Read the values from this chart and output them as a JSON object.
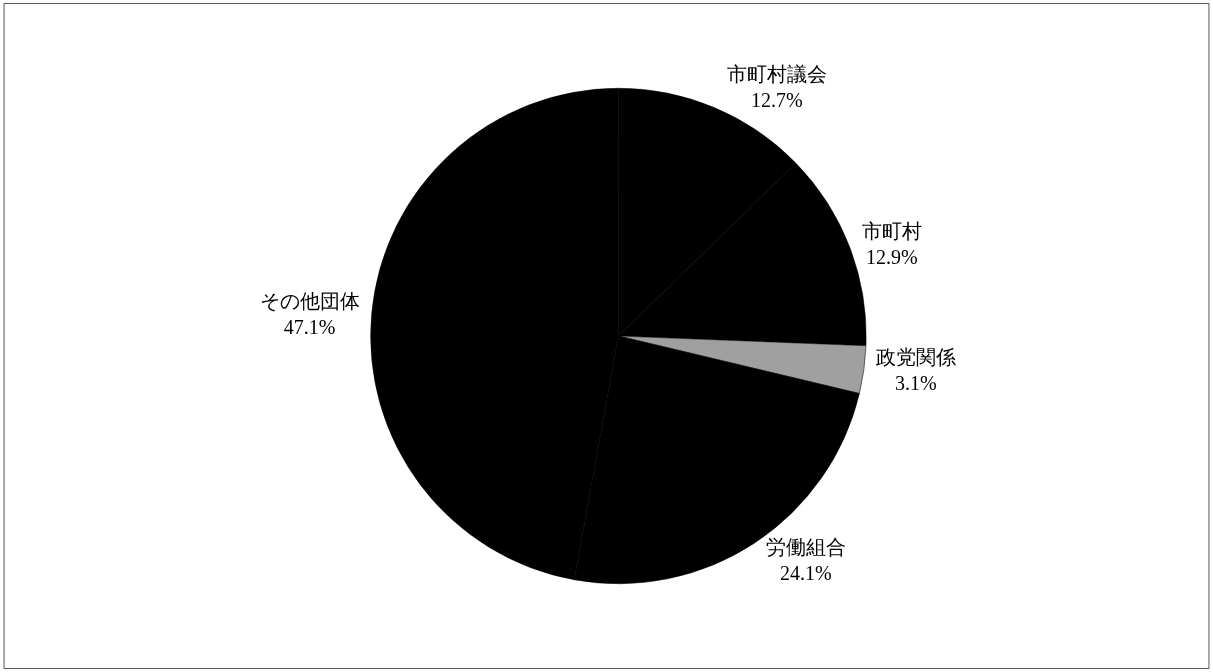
{
  "chart_data": {
    "type": "pie",
    "categories": [
      "市町村議会",
      "市町村",
      "政党関係",
      "労働組合",
      "その他団体"
    ],
    "values": [
      12.7,
      12.9,
      3.1,
      24.1,
      47.1
    ],
    "value_labels": [
      "12.7%",
      "12.9%",
      "3.1%",
      "24.1%",
      "47.1%"
    ],
    "colors": [
      "#000000",
      "#000000",
      "#a0a0a0",
      "#000000",
      "#000000"
    ],
    "legend": false
  }
}
